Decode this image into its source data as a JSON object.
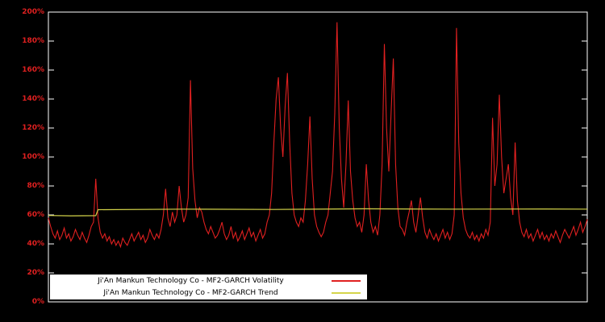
{
  "colors": {
    "background": "#000000",
    "border": "#ffffff",
    "volatility_line": "#e02020",
    "trend_line": "#d4d44a",
    "axis_label": "#e02020",
    "legend_bg": "#ffffff",
    "legend_text": "#000000"
  },
  "legend": {
    "volatility_label": "Ji'An Mankun Technology Co - MF2-GARCH Volatility",
    "trend_label": "Ji'An Mankun Technology Co - MF2-GARCH Trend"
  },
  "chart_data": {
    "type": "line",
    "title": "",
    "xlabel": "",
    "ylabel": "",
    "ylim": [
      0,
      200
    ],
    "yunit": "%",
    "grid": false,
    "legend_position": "bottom-center-inside",
    "ytick_values": [
      0,
      20,
      40,
      60,
      80,
      100,
      120,
      140,
      160,
      180,
      200
    ],
    "ytick_labels": [
      "0%",
      "20%",
      "40%",
      "60%",
      "80%",
      "100%",
      "120%",
      "140%",
      "160%",
      "180%",
      "200%"
    ],
    "series": [
      {
        "name": "Ji'An Mankun Technology Co - MF2-GARCH Volatility",
        "color": "#e02020",
        "values": [
          58,
          52,
          47,
          44,
          49,
          43,
          46,
          51,
          44,
          47,
          42,
          45,
          50,
          46,
          43,
          48,
          44,
          41,
          46,
          52,
          55,
          85,
          58,
          48,
          44,
          47,
          42,
          45,
          40,
          43,
          39,
          42,
          38,
          44,
          41,
          39,
          43,
          47,
          42,
          45,
          48,
          43,
          46,
          41,
          44,
          50,
          46,
          43,
          47,
          44,
          50,
          60,
          78,
          58,
          52,
          62,
          55,
          60,
          80,
          65,
          55,
          60,
          72,
          153,
          92,
          70,
          58,
          65,
          62,
          55,
          50,
          47,
          52,
          48,
          44,
          46,
          50,
          55,
          47,
          43,
          46,
          52,
          44,
          48,
          42,
          45,
          49,
          43,
          47,
          51,
          45,
          48,
          42,
          46,
          50,
          44,
          47,
          55,
          60,
          75,
          110,
          140,
          155,
          120,
          100,
          135,
          158,
          110,
          75,
          60,
          55,
          52,
          58,
          55,
          70,
          95,
          128,
          85,
          60,
          52,
          48,
          45,
          48,
          55,
          60,
          75,
          90,
          130,
          193,
          120,
          85,
          65,
          95,
          139,
          90,
          70,
          58,
          52,
          55,
          48,
          60,
          95,
          70,
          55,
          48,
          52,
          46,
          60,
          95,
          178,
          120,
          90,
          130,
          168,
          95,
          65,
          52,
          50,
          46,
          55,
          62,
          70,
          55,
          48,
          60,
          72,
          58,
          48,
          44,
          50,
          46,
          43,
          47,
          42,
          46,
          50,
          44,
          48,
          43,
          47,
          60,
          189,
          110,
          75,
          58,
          50,
          46,
          44,
          48,
          43,
          46,
          42,
          47,
          44,
          50,
          46,
          55,
          127,
          80,
          95,
          143,
          100,
          75,
          85,
          95,
          72,
          60,
          110,
          70,
          55,
          48,
          45,
          50,
          44,
          47,
          42,
          46,
          50,
          44,
          48,
          43,
          46,
          42,
          47,
          44,
          49,
          45,
          41,
          46,
          50,
          47,
          44,
          48,
          52,
          46,
          50,
          55,
          48,
          52,
          57
        ]
      },
      {
        "name": "Ji'An Mankun Technology Co - MF2-GARCH Trend",
        "color": "#d4d44a",
        "trend_points": [
          {
            "i": 0,
            "v": 59.6
          },
          {
            "i": 10,
            "v": 59.4
          },
          {
            "i": 21,
            "v": 59.5
          },
          {
            "i": 22,
            "v": 63.6
          },
          {
            "i": 60,
            "v": 64.0
          },
          {
            "i": 100,
            "v": 63.8
          },
          {
            "i": 140,
            "v": 64.2
          },
          {
            "i": 180,
            "v": 64.0
          },
          {
            "i": 220,
            "v": 64.1
          },
          {
            "i": 239,
            "v": 64.0
          }
        ]
      }
    ]
  }
}
